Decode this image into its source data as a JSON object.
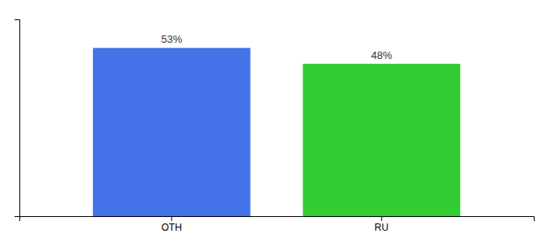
{
  "chart_data": {
    "type": "bar",
    "categories": [
      "OTH",
      "RU"
    ],
    "values": [
      53,
      48
    ],
    "colors": [
      "#4472e8",
      "#33cc33"
    ],
    "value_labels": [
      "53%",
      "48%"
    ],
    "data_labels": true,
    "ylim": [
      0,
      62
    ],
    "tick_labels": "x"
  }
}
